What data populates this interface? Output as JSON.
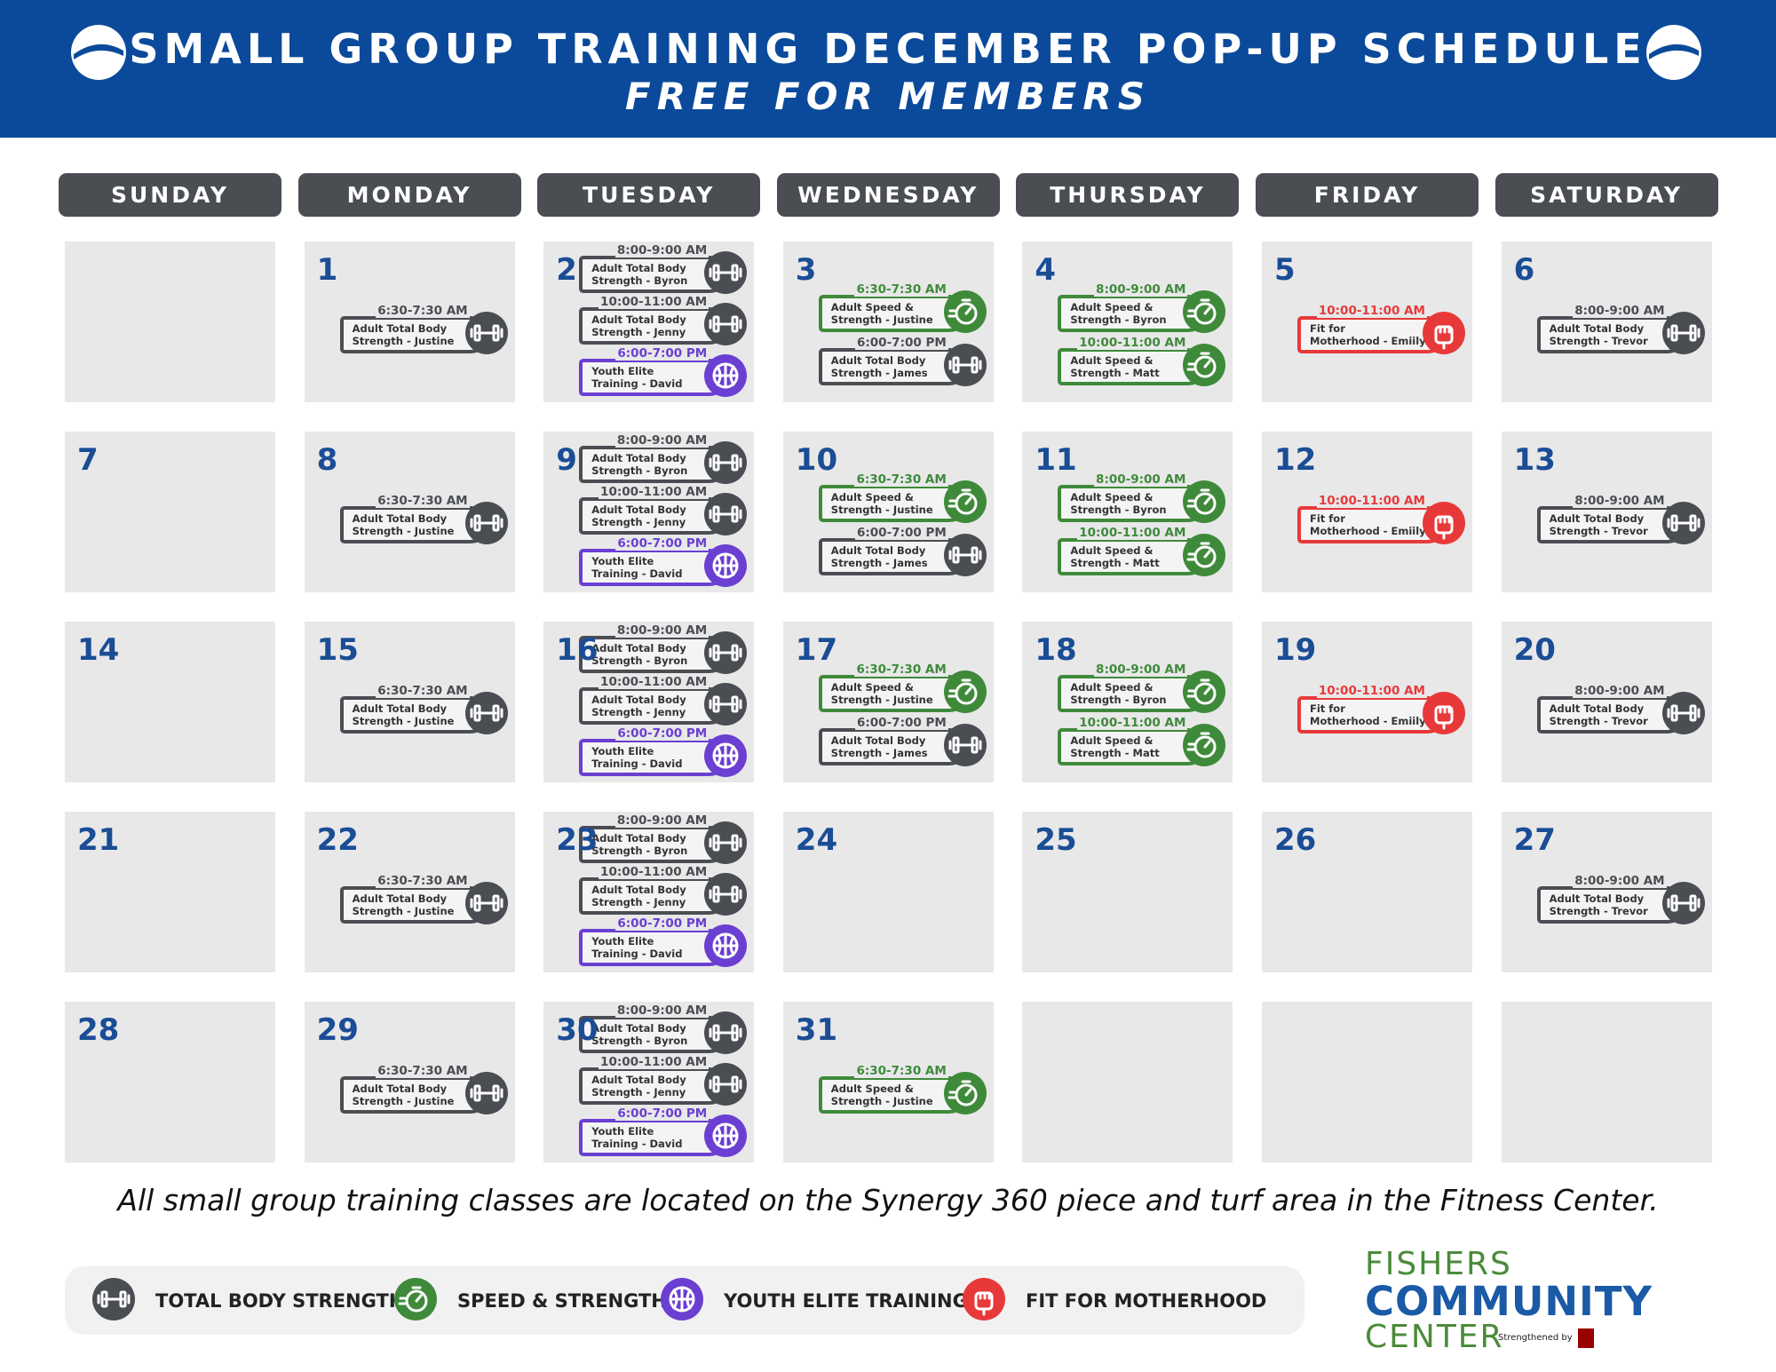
{
  "header": {
    "title": "SMALL GROUP TRAINING DECEMBER POP-UP SCHEDULE",
    "subtitle": "FREE FOR MEMBERS"
  },
  "days": [
    "SUNDAY",
    "MONDAY",
    "TUESDAY",
    "WEDNESDAY",
    "THURSDAY",
    "FRIDAY",
    "SATURDAY"
  ],
  "weeks": [
    [
      null,
      {
        "date": 1,
        "events": [
          {
            "time": "6:30-7:30 AM",
            "text": [
              "Adult Total Body",
              "Strength - Justine"
            ],
            "kind": "strength"
          }
        ]
      },
      {
        "date": 2,
        "events": [
          {
            "time": "8:00-9:00 AM",
            "text": [
              "Adult Total Body",
              "Strength - Byron"
            ],
            "kind": "strength"
          },
          {
            "time": "10:00-11:00 AM",
            "text": [
              "Adult Total Body",
              "Strength - Jenny"
            ],
            "kind": "strength"
          },
          {
            "time": "6:00-7:00 PM",
            "text": [
              "Youth Elite",
              "Training - David"
            ],
            "kind": "youth"
          }
        ]
      },
      {
        "date": 3,
        "events": [
          {
            "time": "6:30-7:30 AM",
            "text": [
              "Adult Speed &",
              "Strength - Justine"
            ],
            "kind": "speed"
          },
          {
            "time": "6:00-7:00 PM",
            "text": [
              "Adult Total Body",
              "Strength - James"
            ],
            "kind": "strength"
          }
        ]
      },
      {
        "date": 4,
        "events": [
          {
            "time": "8:00-9:00 AM",
            "text": [
              "Adult Speed &",
              "Strength - Byron"
            ],
            "kind": "speed"
          },
          {
            "time": "10:00-11:00 AM",
            "text": [
              "Adult Speed &",
              "Strength - Matt"
            ],
            "kind": "speed"
          }
        ]
      },
      {
        "date": 5,
        "events": [
          {
            "time": "10:00-11:00 AM",
            "text": [
              "Fit for",
              "Motherhood - Emiily"
            ],
            "kind": "motherhood"
          }
        ]
      },
      {
        "date": 6,
        "events": [
          {
            "time": "8:00-9:00 AM",
            "text": [
              "Adult Total Body",
              "Strength - Trevor"
            ],
            "kind": "strength"
          }
        ]
      }
    ],
    [
      {
        "date": 7
      },
      {
        "date": 8,
        "events": [
          {
            "time": "6:30-7:30 AM",
            "text": [
              "Adult Total Body",
              "Strength - Justine"
            ],
            "kind": "strength"
          }
        ]
      },
      {
        "date": 9,
        "events": [
          {
            "time": "8:00-9:00 AM",
            "text": [
              "Adult Total Body",
              "Strength - Byron"
            ],
            "kind": "strength"
          },
          {
            "time": "10:00-11:00 AM",
            "text": [
              "Adult Total Body",
              "Strength - Jenny"
            ],
            "kind": "strength"
          },
          {
            "time": "6:00-7:00 PM",
            "text": [
              "Youth Elite",
              "Training - David"
            ],
            "kind": "youth"
          }
        ]
      },
      {
        "date": 10,
        "events": [
          {
            "time": "6:30-7:30 AM",
            "text": [
              "Adult Speed &",
              "Strength - Justine"
            ],
            "kind": "speed"
          },
          {
            "time": "6:00-7:00 PM",
            "text": [
              "Adult Total Body",
              "Strength - James"
            ],
            "kind": "strength"
          }
        ]
      },
      {
        "date": 11,
        "events": [
          {
            "time": "8:00-9:00 AM",
            "text": [
              "Adult Speed &",
              "Strength - Byron"
            ],
            "kind": "speed"
          },
          {
            "time": "10:00-11:00 AM",
            "text": [
              "Adult Speed &",
              "Strength - Matt"
            ],
            "kind": "speed"
          }
        ]
      },
      {
        "date": 12,
        "events": [
          {
            "time": "10:00-11:00 AM",
            "text": [
              "Fit for",
              "Motherhood - Emiily"
            ],
            "kind": "motherhood"
          }
        ]
      },
      {
        "date": 13,
        "events": [
          {
            "time": "8:00-9:00 AM",
            "text": [
              "Adult Total Body",
              "Strength - Trevor"
            ],
            "kind": "strength"
          }
        ]
      }
    ],
    [
      {
        "date": 14
      },
      {
        "date": 15,
        "events": [
          {
            "time": "6:30-7:30 AM",
            "text": [
              "Adult Total Body",
              "Strength - Justine"
            ],
            "kind": "strength"
          }
        ]
      },
      {
        "date": 16,
        "events": [
          {
            "time": "8:00-9:00 AM",
            "text": [
              "Adult Total Body",
              "Strength - Byron"
            ],
            "kind": "strength"
          },
          {
            "time": "10:00-11:00 AM",
            "text": [
              "Adult Total Body",
              "Strength - Jenny"
            ],
            "kind": "strength"
          },
          {
            "time": "6:00-7:00 PM",
            "text": [
              "Youth Elite",
              "Training - David"
            ],
            "kind": "youth"
          }
        ]
      },
      {
        "date": 17,
        "events": [
          {
            "time": "6:30-7:30 AM",
            "text": [
              "Adult Speed &",
              "Strength - Justine"
            ],
            "kind": "speed"
          },
          {
            "time": "6:00-7:00 PM",
            "text": [
              "Adult Total Body",
              "Strength - James"
            ],
            "kind": "strength"
          }
        ]
      },
      {
        "date": 18,
        "events": [
          {
            "time": "8:00-9:00 AM",
            "text": [
              "Adult Speed &",
              "Strength - Byron"
            ],
            "kind": "speed"
          },
          {
            "time": "10:00-11:00 AM",
            "text": [
              "Adult Speed &",
              "Strength - Matt"
            ],
            "kind": "speed"
          }
        ]
      },
      {
        "date": 19,
        "events": [
          {
            "time": "10:00-11:00 AM",
            "text": [
              "Fit for",
              "Motherhood - Emiily"
            ],
            "kind": "motherhood"
          }
        ]
      },
      {
        "date": 20,
        "events": [
          {
            "time": "8:00-9:00 AM",
            "text": [
              "Adult Total Body",
              "Strength - Trevor"
            ],
            "kind": "strength"
          }
        ]
      }
    ],
    [
      {
        "date": 21
      },
      {
        "date": 22,
        "events": [
          {
            "time": "6:30-7:30 AM",
            "text": [
              "Adult Total Body",
              "Strength - Justine"
            ],
            "kind": "strength"
          }
        ]
      },
      {
        "date": 23,
        "events": [
          {
            "time": "8:00-9:00 AM",
            "text": [
              "Adult Total Body",
              "Strength - Byron"
            ],
            "kind": "strength"
          },
          {
            "time": "10:00-11:00 AM",
            "text": [
              "Adult Total Body",
              "Strength - Jenny"
            ],
            "kind": "strength"
          },
          {
            "time": "6:00-7:00 PM",
            "text": [
              "Youth Elite",
              "Training - David"
            ],
            "kind": "youth"
          }
        ]
      },
      {
        "date": 24
      },
      {
        "date": 25
      },
      {
        "date": 26
      },
      {
        "date": 27,
        "events": [
          {
            "time": "8:00-9:00 AM",
            "text": [
              "Adult Total Body",
              "Strength - Trevor"
            ],
            "kind": "strength"
          }
        ]
      }
    ],
    [
      {
        "date": 28
      },
      {
        "date": 29,
        "events": [
          {
            "time": "6:30-7:30 AM",
            "text": [
              "Adult Total Body",
              "Strength - Justine"
            ],
            "kind": "strength"
          }
        ]
      },
      {
        "date": 30,
        "events": [
          {
            "time": "8:00-9:00 AM",
            "text": [
              "Adult Total Body",
              "Strength - Byron"
            ],
            "kind": "strength"
          },
          {
            "time": "10:00-11:00 AM",
            "text": [
              "Adult Total Body",
              "Strength - Jenny"
            ],
            "kind": "strength"
          },
          {
            "time": "6:00-7:00 PM",
            "text": [
              "Youth Elite",
              "Training - David"
            ],
            "kind": "youth"
          }
        ]
      },
      {
        "date": 31,
        "events": [
          {
            "time": "6:30-7:30 AM",
            "text": [
              "Adult Speed &",
              "Strength - Justine"
            ],
            "kind": "speed"
          }
        ]
      },
      null,
      null,
      null
    ]
  ],
  "note": "All small group training classes are located on the Synergy 360 piece and turf area in the Fitness Center.",
  "legend": [
    {
      "label": "TOTAL BODY STRENGTH",
      "kind": "strength",
      "color": "#4a4d52"
    },
    {
      "label": "SPEED & STRENGTH",
      "kind": "speed",
      "color": "#3f8a3a"
    },
    {
      "label": "YOUTH ELITE TRAINING",
      "kind": "youth",
      "color": "#6a3fd1"
    },
    {
      "label": "FIT FOR MOTHERHOOD",
      "kind": "motherhood",
      "color": "#e8393a"
    }
  ],
  "logo": {
    "line1": "FISHERS",
    "line2": "COMMUNITY",
    "line3": "CENTER",
    "tagline": "Strengthened by"
  }
}
